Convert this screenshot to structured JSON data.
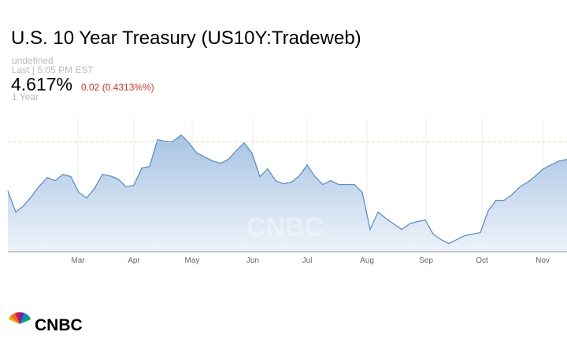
{
  "chart_data": {
    "type": "area",
    "title": "U.S. 10 Year Treasury (US10Y:Tradeweb)",
    "subtitle": "undefined",
    "last_label": "Last | 5:05 PM EST",
    "last_value": "4.617%",
    "change": "0.02 (0.4313%%)",
    "range_label": "1 Year",
    "watermark": "CNBC",
    "logo": "CNBC",
    "color": "#5b8fc7",
    "values": [
      4.417,
      4.282,
      4.322,
      4.382,
      4.447,
      4.502,
      4.482,
      4.522,
      4.507,
      4.407,
      4.372,
      4.432,
      4.522,
      4.512,
      4.492,
      4.442,
      4.452,
      4.562,
      4.572,
      4.742,
      4.732,
      4.732,
      4.772,
      4.722,
      4.657,
      4.632,
      4.607,
      4.592,
      4.617,
      4.672,
      4.722,
      4.657,
      4.507,
      4.557,
      4.482,
      4.462,
      4.472,
      4.512,
      4.582,
      4.507,
      4.457,
      4.482,
      4.457,
      4.457,
      4.457,
      4.407,
      4.172,
      4.282,
      4.242,
      4.207,
      4.172,
      4.207,
      4.222,
      4.232,
      4.142,
      4.107,
      4.082,
      4.107,
      4.132,
      4.142,
      4.152,
      4.292,
      4.357,
      4.357,
      4.392,
      4.442,
      4.472,
      4.512,
      4.557,
      4.582,
      4.607,
      4.617
    ],
    "reference_line": 4.73,
    "xlim": [
      0,
      71
    ],
    "ylim": [
      4.03,
      4.88
    ],
    "xticks": [
      {
        "value": 8.9,
        "label": "Mar"
      },
      {
        "value": 16,
        "label": "Apr"
      },
      {
        "value": 23.4,
        "label": "May"
      },
      {
        "value": 31.1,
        "label": "Jun"
      },
      {
        "value": 38,
        "label": "Jul"
      },
      {
        "value": 45.6,
        "label": "Aug"
      },
      {
        "value": 53.1,
        "label": "Sep"
      },
      {
        "value": 60.2,
        "label": "Oct"
      },
      {
        "value": 67.9,
        "label": "Nov"
      }
    ],
    "grid": true
  }
}
